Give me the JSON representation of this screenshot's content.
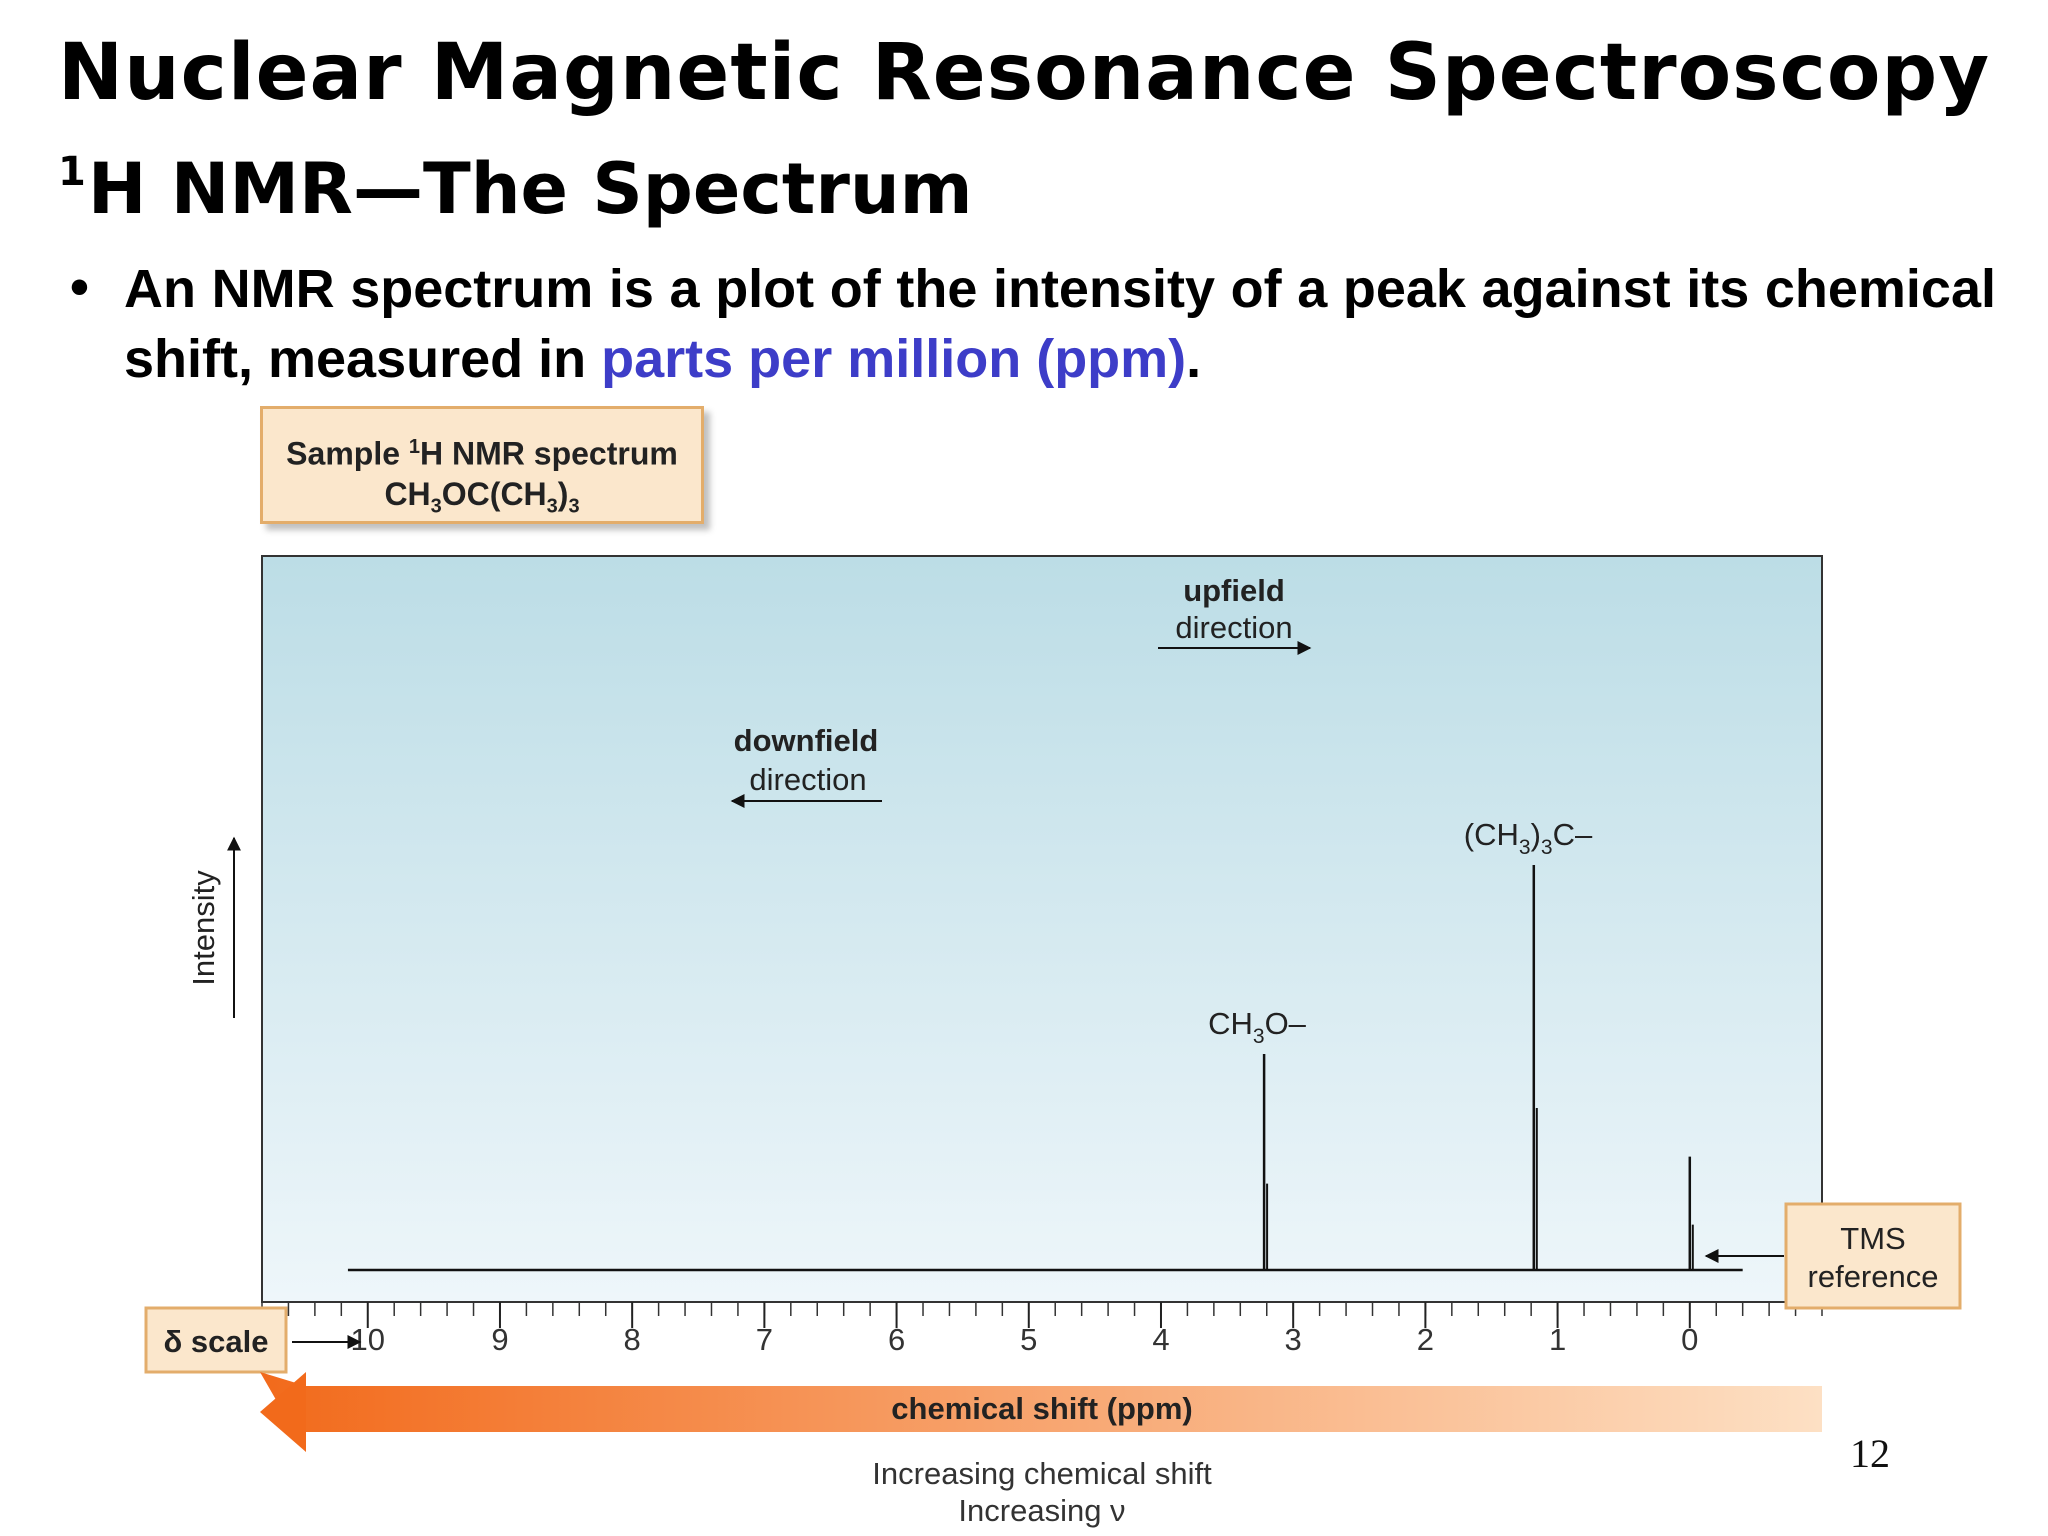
{
  "slide": {
    "title": "Nuclear Magnetic Resonance Spectroscopy",
    "section_sup": "1",
    "section_title": "H NMR—The Spectrum",
    "bullet": "•",
    "bullet_text_1": "An NMR spectrum is a plot of the intensity of a peak against its chemical shift, measured in ",
    "bullet_link": "parts per million (ppm)",
    "bullet_text_2": ".",
    "page_number": "12"
  },
  "sample_box": {
    "line1_a": "Sample ",
    "line1_sup": "1",
    "line1_b": "H NMR spectrum",
    "formula": {
      "a": "CH",
      "s1": "3",
      "b": "OC(CH",
      "s2": "3",
      "c": ")",
      "s3": "3"
    }
  },
  "colors": {
    "accent": "#3d3dc8",
    "plot_bg_top": "#bcdde6",
    "plot_bg_bottom": "#eef6fa",
    "box_fill": "#fbe7cc",
    "box_border": "#e3ad6b",
    "arrow_dark": "#f26a1b",
    "arrow_light": "#fde0c4"
  },
  "chart_data": {
    "type": "line",
    "xlim": [
      10.8,
      -1.0
    ],
    "ylim": [
      0,
      1
    ],
    "x_ticks": [
      10,
      9,
      8,
      7,
      6,
      5,
      4,
      3,
      2,
      1,
      0
    ],
    "x_tick_labels": [
      "10",
      "9",
      "8",
      "7",
      "6",
      "5",
      "4",
      "3",
      "2",
      "1",
      "0"
    ],
    "minor_tick_step": 0.2,
    "ylabel": "Intensity",
    "xlabel": "chemical shift (ppm)",
    "x_axis_subtitle_1": "Increasing chemical shift",
    "x_axis_subtitle_2": "Increasing ν",
    "scale_label": "δ scale",
    "grid": false,
    "baseline_range": [
      10.15,
      -0.4
    ],
    "peaks": [
      {
        "x": 3.22,
        "y": 0.4,
        "name": "CH3O",
        "label_main": "CH",
        "label_sub": "3",
        "label_tail": "O–"
      },
      {
        "x": 1.18,
        "y": 0.75,
        "name": "(CH3)3C",
        "label_main": "(CH",
        "label_sub": "3",
        "label_mid": ")",
        "label_sub2": "3",
        "label_tail": "C–"
      },
      {
        "x": 0.0,
        "y": 0.21,
        "name": "TMS",
        "label_main": "TMS",
        "label_tail": "reference"
      }
    ],
    "annotations": {
      "upfield_bold": "upfield",
      "upfield_text": "direction",
      "downfield_bold": "downfield",
      "downfield_text": "direction"
    }
  }
}
